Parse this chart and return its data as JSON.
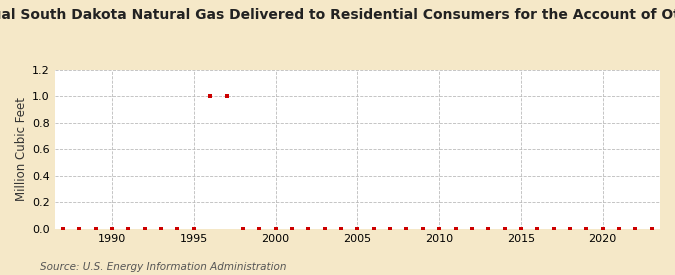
{
  "title": "Annual South Dakota Natural Gas Delivered to Residential Consumers for the Account of Others",
  "ylabel": "Million Cubic Feet",
  "source": "Source: U.S. Energy Information Administration",
  "background_color": "#f5e8c8",
  "plot_background_color": "#ffffff",
  "xlim": [
    1986.5,
    2023.5
  ],
  "ylim": [
    0,
    1.2
  ],
  "yticks": [
    0.0,
    0.2,
    0.4,
    0.6,
    0.8,
    1.0,
    1.2
  ],
  "xticks": [
    1990,
    1995,
    2000,
    2005,
    2010,
    2015,
    2020
  ],
  "data_points": {
    "years": [
      1987,
      1988,
      1989,
      1990,
      1991,
      1992,
      1993,
      1994,
      1995,
      1996,
      1997,
      1998,
      1999,
      2000,
      2001,
      2002,
      2003,
      2004,
      2005,
      2006,
      2007,
      2008,
      2009,
      2010,
      2011,
      2012,
      2013,
      2014,
      2015,
      2016,
      2017,
      2018,
      2019,
      2020,
      2021,
      2022,
      2023
    ],
    "values": [
      0,
      0,
      0,
      0,
      0,
      0,
      0,
      0,
      0,
      1.0,
      1.0,
      0,
      0,
      0,
      0,
      0,
      0,
      0,
      0,
      0,
      0,
      0,
      0,
      0,
      0,
      0,
      0,
      0,
      0,
      0,
      0,
      0,
      0,
      0,
      0,
      0,
      0
    ]
  },
  "marker_color": "#cc0000",
  "marker_size": 3.5,
  "grid_color": "#bbbbbb",
  "title_fontsize": 10,
  "axis_fontsize": 8.5,
  "tick_fontsize": 8,
  "source_fontsize": 7.5
}
